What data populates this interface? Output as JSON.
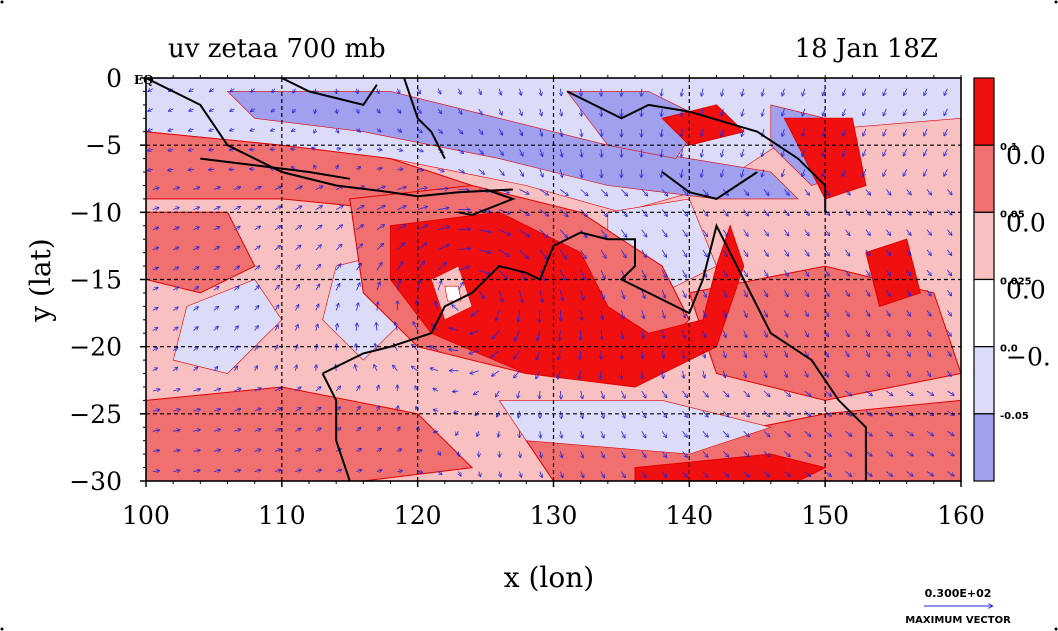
{
  "chart_data": {
    "type": "heatmap",
    "title_left": "uv zetaa 700 mb",
    "title_right": "18 Jan 18Z",
    "xlabel": "x (lon)",
    "ylabel": "y (lat)",
    "xlim": [
      100,
      160
    ],
    "ylim": [
      -30,
      0
    ],
    "x_ticks": [
      100,
      110,
      120,
      130,
      140,
      150,
      160
    ],
    "x_tick_labels": [
      "100",
      "110",
      "120",
      "130",
      "140",
      "150",
      "160"
    ],
    "y_ticks": [
      0,
      -5,
      -10,
      -15,
      -20,
      -25,
      -30
    ],
    "y_tick_labels": [
      "0",
      "−5",
      "−10",
      "−15",
      "−20",
      "−25",
      "−30"
    ],
    "eq_label": "EQ",
    "grid": true,
    "colorbar": {
      "levels": [
        {
          "color": "#f01010",
          "label": "0.1"
        },
        {
          "color": "#f07070",
          "label": "0.05"
        },
        {
          "color": "#f8c0c0",
          "label": "0.025"
        },
        {
          "color": "#ffffff",
          "label": "0.0"
        },
        {
          "color": "#dcdcf8",
          "label": "-0.05"
        },
        {
          "color": "#a0a0ee",
          "label": ""
        }
      ],
      "large_labels": [
        "0.0",
        "0.0",
        "0.0",
        "−0."
      ]
    },
    "vector_key": {
      "value_label": "0.300E+02",
      "caption": "MAXIMUM VECTOR"
    },
    "colors": {
      "strong_pos": "#f01010",
      "pos": "#f07070",
      "weak_pos": "#f8c0c0",
      "neutral": "#ffffff",
      "weak_neg": "#dcdcf8",
      "neg": "#a0a0ee",
      "vector": "#2222dd",
      "coast": "#000000",
      "contour": "#e00000"
    },
    "features": {
      "cyclone_center": [
        124,
        -16
      ],
      "band_orientation": "spiral from north-east sweeping south-west"
    }
  }
}
